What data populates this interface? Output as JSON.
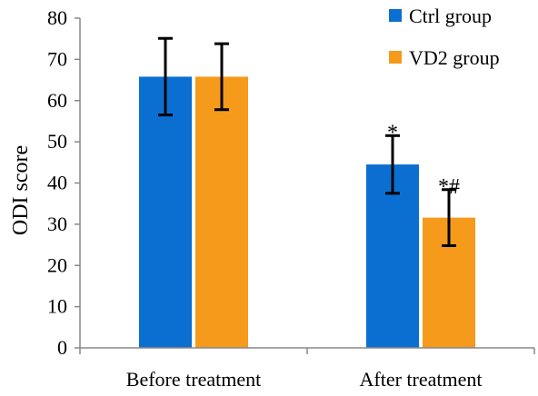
{
  "chart_data": {
    "type": "bar",
    "title": "",
    "xlabel": "",
    "ylabel": "ODI score",
    "ylim": [
      0,
      80
    ],
    "yticks": [
      0,
      10,
      20,
      30,
      40,
      50,
      60,
      70,
      80
    ],
    "grid": false,
    "legend_position": "top-right",
    "categories": [
      "Before treatment",
      "After treatment"
    ],
    "series": [
      {
        "name": "Ctrl group",
        "color": "#0B6FD2",
        "values": [
          65.8,
          44.5
        ],
        "error": [
          9.3,
          7.0
        ],
        "annotations": [
          "",
          "*"
        ]
      },
      {
        "name": "VD2 group",
        "color": "#F59A1B",
        "values": [
          65.8,
          31.6
        ],
        "error": [
          8.0,
          6.8
        ],
        "annotations": [
          "",
          "*#"
        ]
      }
    ]
  }
}
